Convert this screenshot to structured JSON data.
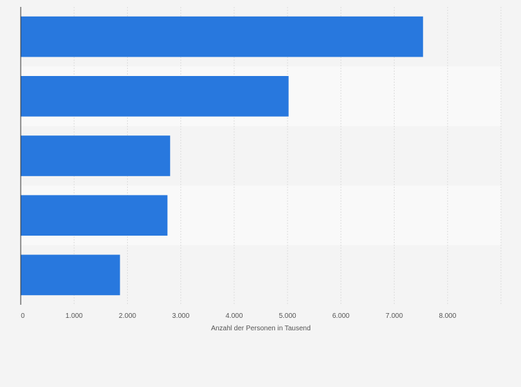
{
  "chart_data": {
    "type": "bar",
    "orientation": "horizontal",
    "categories": [
      "",
      "",
      "",
      "",
      ""
    ],
    "values": [
      7540,
      5020,
      2800,
      2750,
      1860
    ],
    "xlabel": "Anzahl der Personen in Tausend",
    "ylabel": "",
    "xlim": [
      0,
      9000
    ],
    "x_ticks": [
      0,
      1000,
      2000,
      3000,
      4000,
      5000,
      6000,
      7000,
      8000
    ],
    "x_tick_labels": [
      "0",
      "1.000",
      "2.000",
      "3.000",
      "4.000",
      "5.000",
      "6.000",
      "7.000",
      "8.000"
    ],
    "grid": true,
    "colors": {
      "bar": "#2878de",
      "band_light": "#f9f9f9",
      "band_dark": "#f4f4f4",
      "grid": "#dddddd",
      "axis": "#333333",
      "text": "#555555"
    }
  }
}
